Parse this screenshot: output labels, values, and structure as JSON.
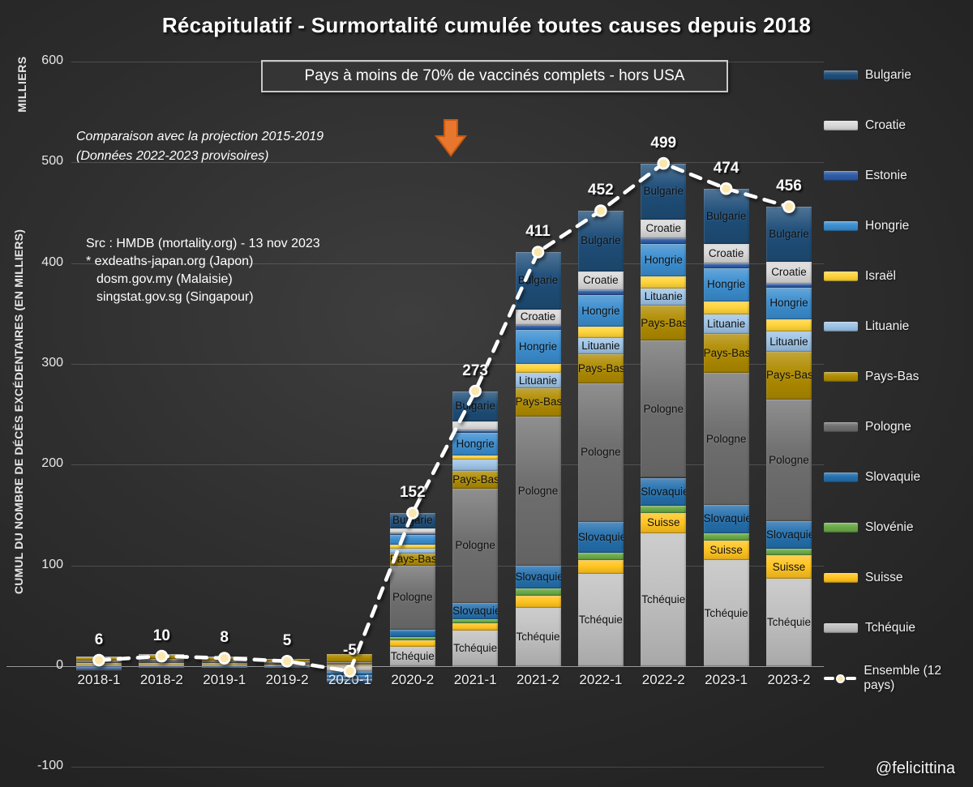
{
  "title": "Récapitulatif - Surmortalité cumulée toutes causes depuis 2018",
  "banner": "Pays à moins de 70% de vaccinés complets - hors USA",
  "annotation": {
    "line1": "Comparaison avec la projection 2015-2019",
    "line2": "(Données 2022-2023 provisoires)"
  },
  "sources": {
    "line1": "Src : HMDB (mortality.org) - 13 nov 2023",
    "line2": "* exdeaths-japan.org (Japon)",
    "line3": "dosm.gov.my (Malaisie)",
    "line4": "singstat.gov.sg (Singapour)"
  },
  "y_axis": {
    "unit_label": "MILLIERS",
    "title": "CUMUL DU NOMBRE DE DÉCÈS EXCÉDENTAIRES (EN MILLIERS)"
  },
  "watermark": "@felicittina",
  "accent_colors": {
    "arrow_fill": "#E8762C",
    "arrow_stroke": "#C55A11",
    "line_color": "#FFFFFF",
    "marker_fill": "#FBE7AE"
  },
  "legend": {
    "items": [
      "Bulgarie",
      "Croatie",
      "Estonie",
      "Hongrie",
      "Israël",
      "Lituanie",
      "Pays-Bas",
      "Pologne",
      "Slovaquie",
      "Slovénie",
      "Suisse",
      "Tchéquie"
    ],
    "line_label": "Ensemble (12 pays)"
  },
  "chart_data": {
    "type": "bar",
    "subtype": "stacked-bars-with-line-overlay",
    "title": "Récapitulatif - Surmortalité cumulée toutes causes depuis 2018",
    "xlabel": "",
    "ylabel": "CUMUL DU NOMBRE DE DÉCÈS EXCÉDENTAIRES (EN MILLIERS)",
    "ylim": [
      -100,
      600
    ],
    "yticks": [
      600,
      500,
      400,
      300,
      200,
      100,
      0,
      -100
    ],
    "grid": true,
    "legend_position": "right",
    "categories": [
      "2018-1",
      "2018-2",
      "2019-1",
      "2019-2",
      "2020-1",
      "2020-2",
      "2021-1",
      "2021-2",
      "2022-1",
      "2022-2",
      "2023-1",
      "2023-2"
    ],
    "series": [
      {
        "name": "Tchéquie",
        "color": "#BFBFBF",
        "values": [
          2,
          2,
          2,
          1,
          -5,
          19,
          35,
          58,
          92,
          132,
          105,
          87
        ]
      },
      {
        "name": "Suisse",
        "color": "#FFC420",
        "values": [
          1,
          1,
          1,
          1,
          2,
          7,
          8,
          12,
          13,
          20,
          20,
          23
        ]
      },
      {
        "name": "Slovénie",
        "color": "#6AAA46",
        "values": [
          0,
          0,
          0,
          0,
          -1,
          3,
          4,
          7,
          8,
          7,
          7,
          7
        ]
      },
      {
        "name": "Slovaquie",
        "color": "#2470AE",
        "values": [
          -1,
          0,
          -1,
          0,
          -3,
          7,
          16,
          23,
          30,
          28,
          28,
          27
        ]
      },
      {
        "name": "Pologne",
        "color": "#6F6F6F",
        "values": [
          3,
          4,
          3,
          3,
          2,
          64,
          113,
          148,
          138,
          136,
          131,
          121
        ]
      },
      {
        "name": "Pays-Bas",
        "color": "#B08C00",
        "values": [
          3,
          4,
          3,
          2,
          8,
          12,
          18,
          28,
          29,
          35,
          39,
          47
        ]
      },
      {
        "name": "Lituanie",
        "color": "#9DC3E6",
        "values": [
          0,
          0,
          0,
          0,
          0,
          5,
          11,
          15,
          16,
          17,
          19,
          20
        ]
      },
      {
        "name": "Israël",
        "color": "#FFD43B",
        "values": [
          0,
          0,
          0,
          0,
          0,
          4,
          4,
          9,
          11,
          12,
          13,
          12
        ]
      },
      {
        "name": "Hongrie",
        "color": "#3B8ED0",
        "values": [
          -1,
          0,
          0,
          0,
          -3,
          9,
          23,
          34,
          31,
          32,
          33,
          32
        ]
      },
      {
        "name": "Estonie",
        "color": "#2E5CA6",
        "values": [
          -1,
          -1,
          0,
          -1,
          -1,
          2,
          2,
          5,
          5,
          6,
          5,
          4
        ]
      },
      {
        "name": "Croatie",
        "color": "#D9D9D9",
        "values": [
          1,
          1,
          1,
          0,
          -1,
          5,
          9,
          15,
          19,
          18,
          19,
          21
        ]
      },
      {
        "name": "Bulgarie",
        "color": "#1F4E79",
        "values": [
          -1,
          -1,
          -1,
          -1,
          -3,
          15,
          30,
          57,
          60,
          56,
          55,
          55
        ]
      }
    ],
    "line_series": {
      "name": "Ensemble (12 pays)",
      "values": [
        6,
        10,
        8,
        5,
        -5,
        152,
        273,
        411,
        452,
        499,
        474,
        456
      ]
    },
    "totals_labels": [
      "6",
      "10",
      "8",
      "5",
      "-5",
      "152",
      "273",
      "411",
      "452",
      "499",
      "474",
      "456"
    ],
    "bar_labels_shown": [
      [],
      [],
      [],
      [],
      [],
      [
        "Bulgarie",
        "Pays-Bas",
        "Pologne",
        "Tchéquie"
      ],
      [
        "Bulgarie",
        "Hongrie",
        "Pays-Bas",
        "Pologne",
        "Slovaquie",
        "Tchéquie"
      ],
      [
        "Bulgarie",
        "Croatie",
        "Hongrie",
        "Lituanie",
        "Pays-Bas",
        "Pologne",
        "Slovaquie",
        "Tchéquie"
      ],
      [
        "Bulgarie",
        "Croatie",
        "Hongrie",
        "Lituanie",
        "Pays-Bas",
        "Pologne",
        "Slovaquie",
        "Tchéquie"
      ],
      [
        "Bulgarie",
        "Croatie",
        "Hongrie",
        "Lituanie",
        "Pays-Bas",
        "Pologne",
        "Slovaquie",
        "Suisse",
        "Tchéquie"
      ],
      [
        "Bulgarie",
        "Croatie",
        "Hongrie",
        "Lituanie",
        "Pays-Bas",
        "Pologne",
        "Slovaquie",
        "Suisse",
        "Tchéquie"
      ],
      [
        "Bulgarie",
        "Croatie",
        "Hongrie",
        "Lituanie",
        "Pays-Bas",
        "Pologne",
        "Slovaquie",
        "Suisse",
        "Tchéquie"
      ]
    ]
  }
}
